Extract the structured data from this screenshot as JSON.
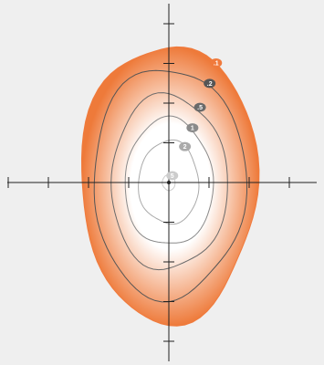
{
  "chart_data": {
    "type": "contour",
    "title": "",
    "xlabel": "",
    "ylabel": "",
    "xlim": [
      -4,
      3
    ],
    "ylim": [
      -4,
      4
    ],
    "grid": false,
    "legend": "none",
    "x_ticks": [
      -4,
      -3,
      -2,
      -1,
      1,
      2,
      3
    ],
    "y_ticks": [
      -4,
      -3,
      -2,
      -1,
      1,
      2,
      3,
      4
    ],
    "center": [
      0,
      0
    ],
    "contours": [
      {
        "label": ".1",
        "semi_axis_x": 2.2,
        "semi_axis_y": 3.5,
        "outer_region": true,
        "color": "#f07a3c"
      },
      {
        "label": ".2",
        "semi_axis_x": 1.9,
        "semi_axis_y": 2.9,
        "color": "#555555"
      },
      {
        "label": ".5",
        "semi_axis_x": 1.45,
        "semi_axis_y": 2.2,
        "color": "#6a6a6a"
      },
      {
        "label": "1",
        "semi_axis_x": 1.1,
        "semi_axis_y": 1.6,
        "color": "#8a8a8a"
      },
      {
        "label": "2",
        "semi_axis_x": 0.75,
        "semi_axis_y": 1.05,
        "color": "#aaaaaa"
      },
      {
        "label": "5",
        "semi_axis_x": 0.16,
        "semi_axis_y": 0.2,
        "color": "#cccccc"
      }
    ],
    "colors": {
      "background": "#efefef",
      "fill_outer": "#ee7a3a",
      "fill_inner": "#ffffff",
      "axis": "#222222"
    }
  }
}
